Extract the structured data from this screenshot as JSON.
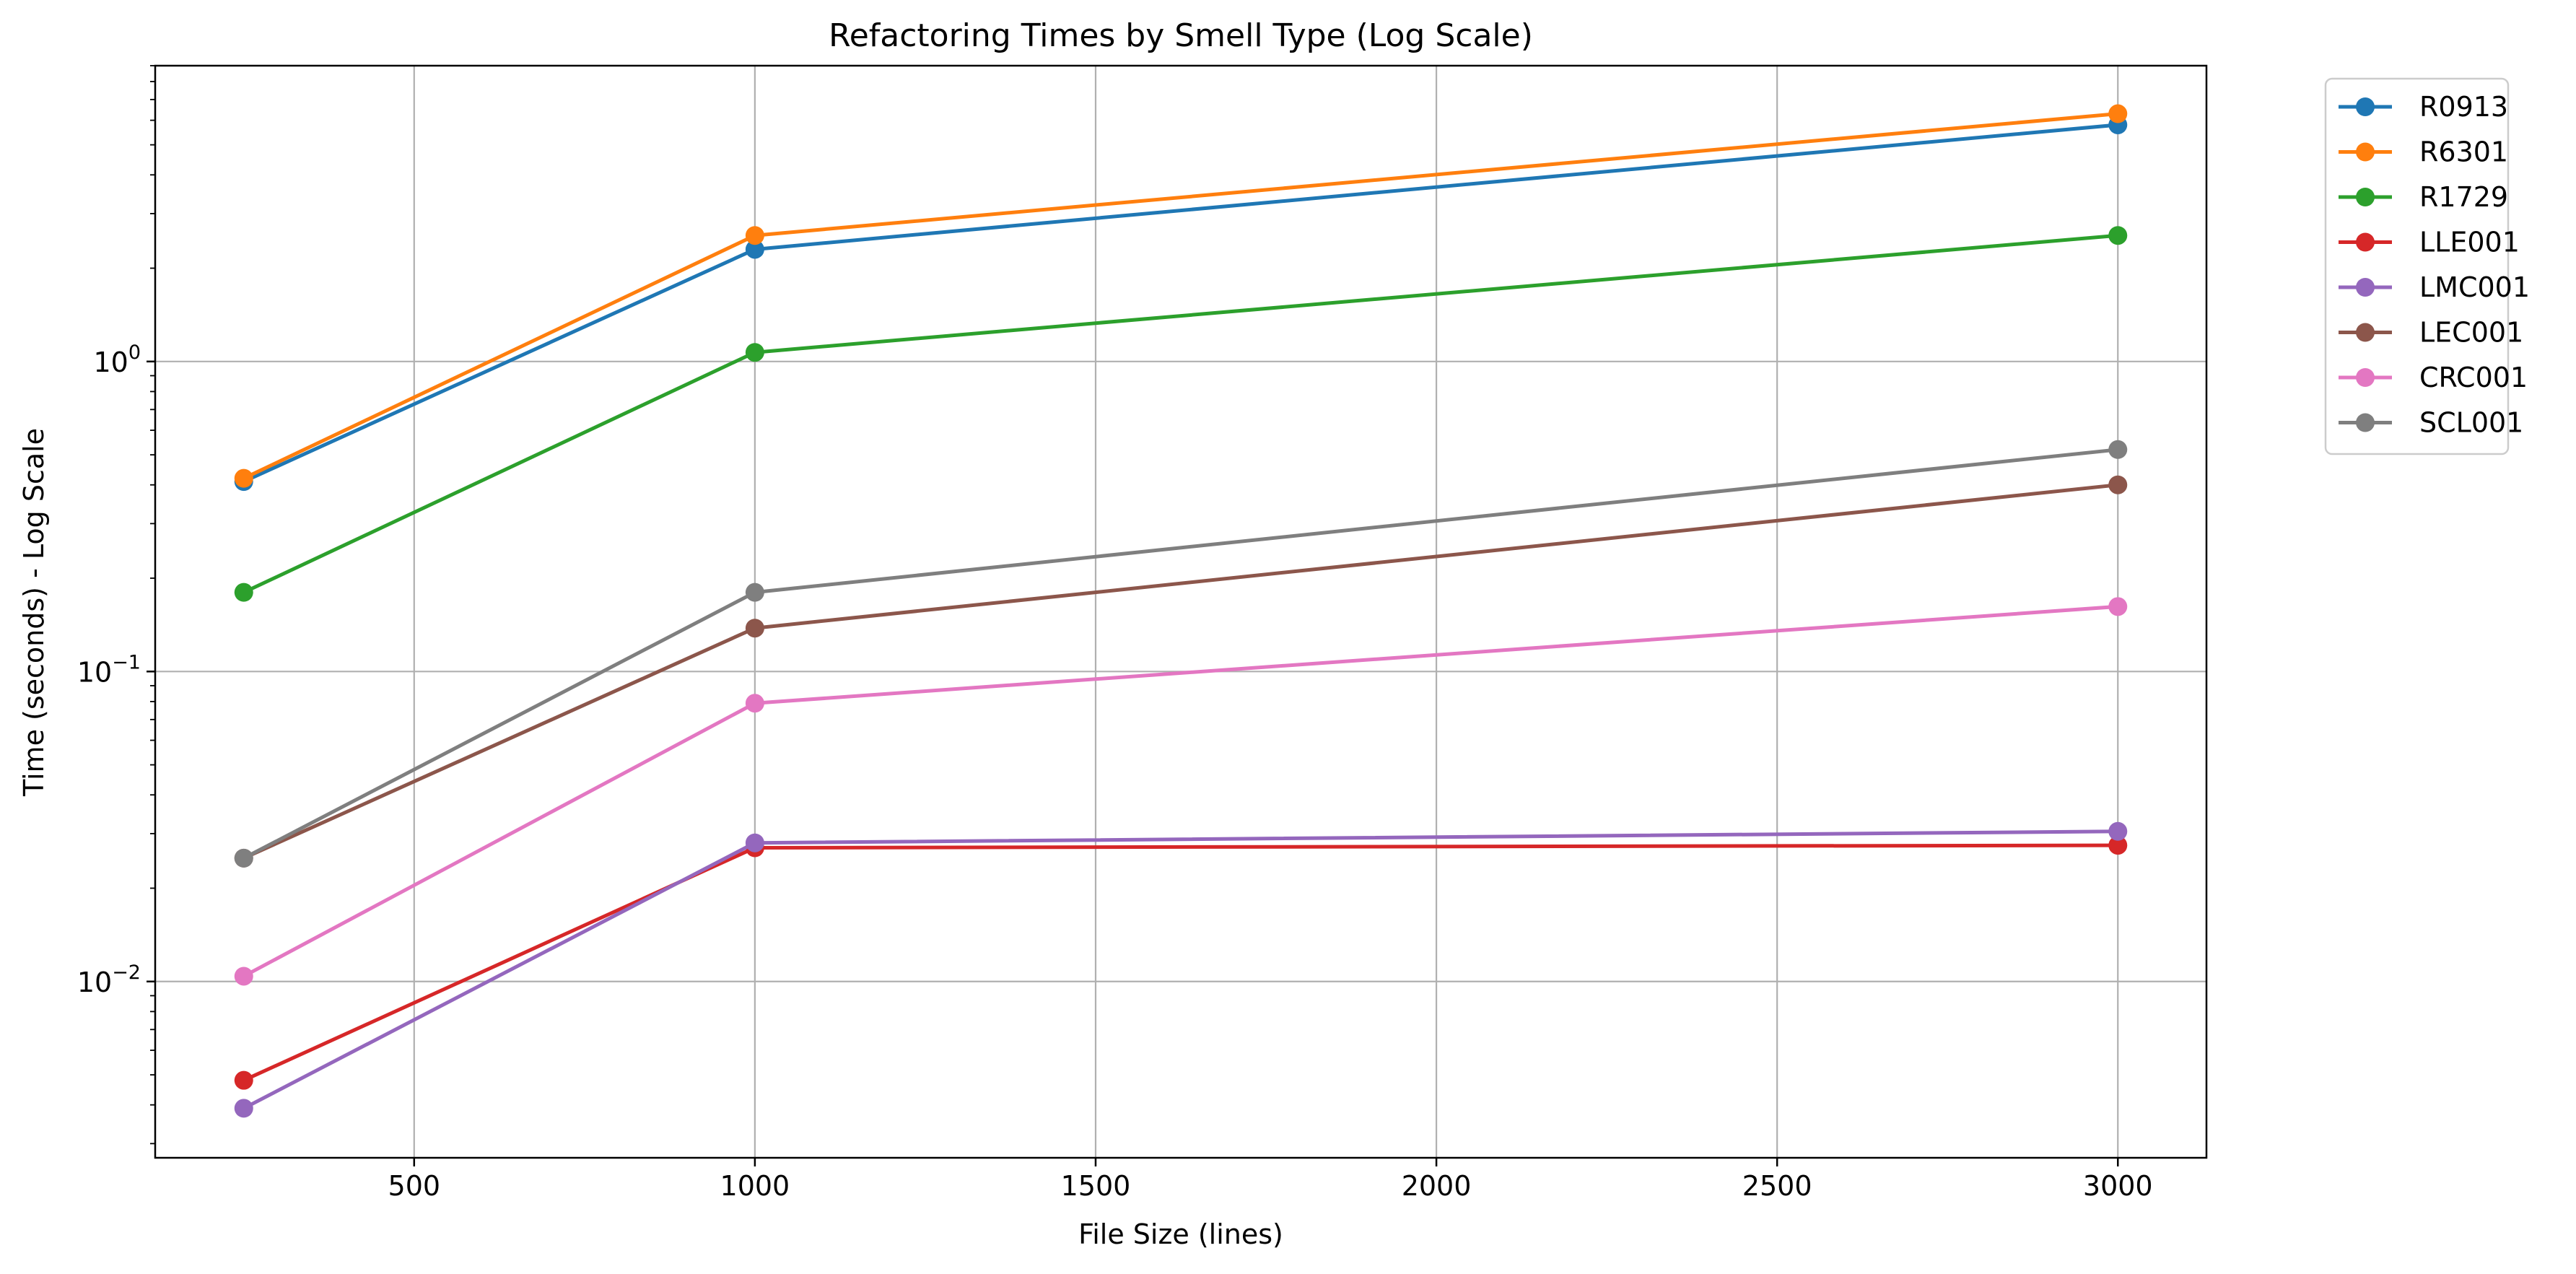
{
  "chart_data": {
    "type": "line",
    "title": "Refactoring Times by Smell Type (Log Scale)",
    "xlabel": "File Size (lines)",
    "ylabel": "Time (seconds) - Log Scale",
    "x": [
      250,
      1000,
      3000
    ],
    "xlim": [
      120,
      3130
    ],
    "ylim": [
      0.0027,
      9.0
    ],
    "yscale": "log",
    "x_ticks": [
      500,
      1000,
      1500,
      2000,
      2500,
      3000
    ],
    "x_tick_labels": [
      "500",
      "1000",
      "1500",
      "2000",
      "2500",
      "3000"
    ],
    "y_ticks": [
      0.01,
      0.1,
      1
    ],
    "y_tick_labels": [
      {
        "base": "10",
        "exp": "−2"
      },
      {
        "base": "10",
        "exp": "−1"
      },
      {
        "base": "10",
        "exp": "0"
      }
    ],
    "grid": true,
    "legend_position": "outside-top-right",
    "series": [
      {
        "name": "R0913",
        "color": "#1f77b4",
        "values": [
          0.41,
          2.3,
          5.8
        ]
      },
      {
        "name": "R6301",
        "color": "#ff7f0e",
        "values": [
          0.42,
          2.55,
          6.3
        ]
      },
      {
        "name": "R1729",
        "color": "#2ca02c",
        "values": [
          0.18,
          1.07,
          2.55
        ]
      },
      {
        "name": "LLE001",
        "color": "#d62728",
        "values": [
          0.0048,
          0.027,
          0.0275
        ]
      },
      {
        "name": "LMC001",
        "color": "#9467bd",
        "values": [
          0.0039,
          0.028,
          0.0305
        ]
      },
      {
        "name": "LEC001",
        "color": "#8c564b",
        "values": [
          0.025,
          0.138,
          0.4
        ]
      },
      {
        "name": "CRC001",
        "color": "#e377c2",
        "values": [
          0.0104,
          0.079,
          0.162
        ]
      },
      {
        "name": "SCL001",
        "color": "#7f7f7f",
        "values": [
          0.025,
          0.18,
          0.52
        ]
      }
    ]
  }
}
